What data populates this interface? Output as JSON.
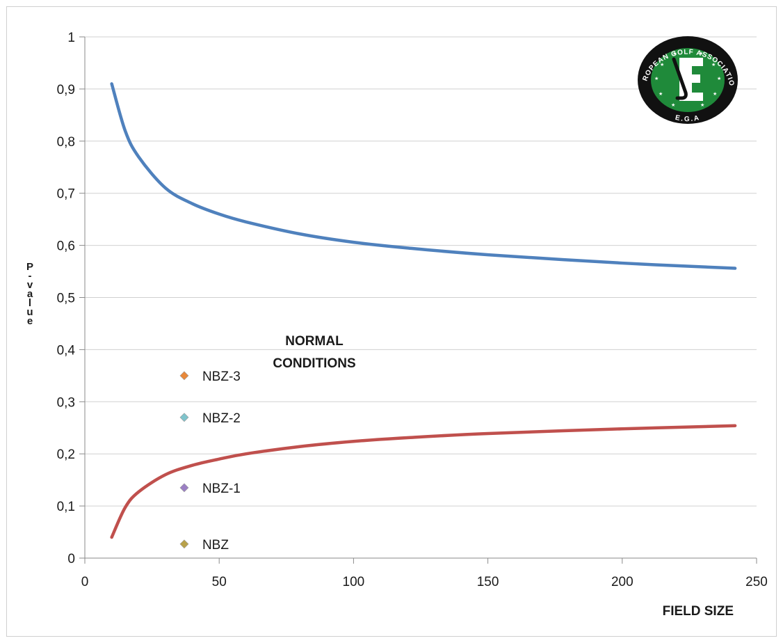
{
  "chart_data": {
    "type": "line",
    "xlabel": "FIELD SIZE",
    "ylabel": "P-value",
    "xlim": [
      0,
      250
    ],
    "ylim": [
      0,
      1
    ],
    "x_ticks": [
      "0",
      "50",
      "100",
      "150",
      "200",
      "250"
    ],
    "y_ticks": [
      "0",
      "0,1",
      "0,2",
      "0,3",
      "0,4",
      "0,5",
      "0,6",
      "0,7",
      "0,8",
      "0,9",
      "1"
    ],
    "grid": "horizontal",
    "series": [
      {
        "color": "#4f81bd",
        "x": [
          10,
          15,
          20,
          30,
          40,
          50,
          60,
          80,
          100,
          120,
          150,
          200,
          242
        ],
        "y": [
          0.91,
          0.82,
          0.77,
          0.71,
          0.68,
          0.66,
          0.645,
          0.622,
          0.606,
          0.595,
          0.582,
          0.566,
          0.556
        ]
      },
      {
        "color": "#c0504d",
        "x": [
          10,
          15,
          20,
          30,
          40,
          50,
          60,
          80,
          100,
          120,
          150,
          200,
          242
        ],
        "y": [
          0.04,
          0.097,
          0.127,
          0.16,
          0.178,
          0.19,
          0.2,
          0.214,
          0.224,
          0.231,
          0.239,
          0.248,
          0.254
        ]
      }
    ],
    "markers": [
      {
        "label": "NBZ-3",
        "x": 37,
        "y": 0.35,
        "color": "#e8883a"
      },
      {
        "label": "NBZ-2",
        "x": 37,
        "y": 0.27,
        "color": "#7fc4cc"
      },
      {
        "label": "NBZ-1",
        "x": 37,
        "y": 0.135,
        "color": "#9b7fc4"
      },
      {
        "label": "NBZ",
        "x": 37,
        "y": 0.027,
        "color": "#b8a14a"
      }
    ],
    "annotation": {
      "line1": "NORMAL",
      "line2": "CONDITIONS"
    }
  },
  "logo": {
    "text_top": "EUROPEAN GOLF ASSOCIATION",
    "text_bottom": "E.G.A",
    "colors": {
      "ring": "#111111",
      "field": "#1f8a3a",
      "emblem": "#ffffff"
    }
  }
}
